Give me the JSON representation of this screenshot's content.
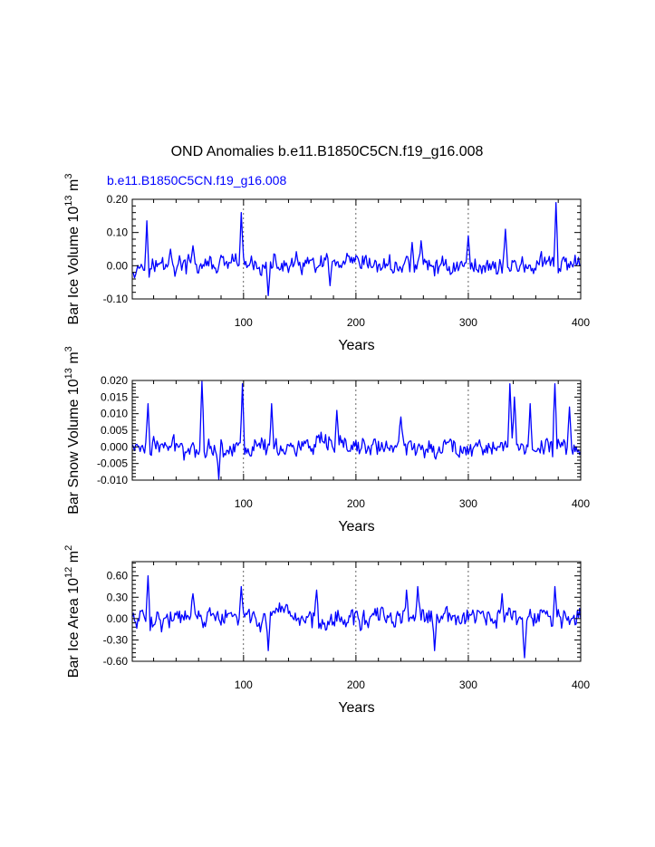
{
  "main_title": "OND Anomalies b.e11.B1850C5CN.f19_g16.008",
  "run_label": "b.e11.B1850C5CN.f19_g16.008",
  "chart_data": [
    {
      "type": "line",
      "ylabel": "Bar Ice Volume",
      "yunit_base": "10",
      "yunit_exp": "13",
      "yunit_unit": "m",
      "yunit_unit_exp": "3",
      "xlabel": "Years",
      "xlim": [
        1,
        400
      ],
      "ylim": [
        -0.1,
        0.2
      ],
      "xticks": [
        100,
        200,
        300,
        400
      ],
      "xticklabels": [
        "100",
        "200",
        "300",
        "400"
      ],
      "yticks": [
        -0.1,
        0.0,
        0.1,
        0.2
      ],
      "yticklabels": [
        "-0.10",
        "0.00",
        "0.10",
        "0.20"
      ],
      "grid_x": [
        100,
        200,
        300
      ],
      "color": "#0000ff",
      "peaks": [
        [
          14,
          0.135
        ],
        [
          98,
          0.16
        ],
        [
          378,
          0.19
        ],
        [
          333,
          0.11
        ],
        [
          122,
          -0.09
        ],
        [
          300,
          0.09
        ],
        [
          250,
          0.07
        ],
        [
          258,
          0.075
        ],
        [
          177,
          -0.06
        ],
        [
          35,
          0.05
        ],
        [
          55,
          0.06
        ]
      ]
    },
    {
      "type": "line",
      "ylabel": "Bar Snow Volume",
      "yunit_base": "10",
      "yunit_exp": "13",
      "yunit_unit": "m",
      "yunit_unit_exp": "3",
      "xlabel": "Years",
      "xlim": [
        1,
        400
      ],
      "ylim": [
        -0.01,
        0.02
      ],
      "xticks": [
        100,
        200,
        300,
        400
      ],
      "xticklabels": [
        "100",
        "200",
        "300",
        "400"
      ],
      "yticks": [
        -0.01,
        -0.005,
        0.0,
        0.005,
        0.01,
        0.015,
        0.02
      ],
      "yticklabels": [
        "-0.010",
        "-0.005",
        "0.000",
        "0.005",
        "0.010",
        "0.015",
        "0.020"
      ],
      "grid_x": [
        100,
        200,
        300
      ],
      "color": "#0000ff",
      "peaks": [
        [
          63,
          0.02
        ],
        [
          99,
          0.019
        ],
        [
          125,
          0.013
        ],
        [
          15,
          0.013
        ],
        [
          337,
          0.019
        ],
        [
          377,
          0.019
        ],
        [
          341,
          0.015
        ],
        [
          78,
          -0.01
        ],
        [
          183,
          0.011
        ],
        [
          390,
          0.012
        ],
        [
          240,
          0.009
        ],
        [
          355,
          0.013
        ]
      ]
    },
    {
      "type": "line",
      "ylabel": "Bar Ice Area",
      "yunit_base": "10",
      "yunit_exp": "12",
      "yunit_unit": "m",
      "yunit_unit_exp": "2",
      "xlabel": "Years",
      "xlim": [
        1,
        400
      ],
      "ylim": [
        -0.6,
        0.8
      ],
      "xticks": [
        100,
        200,
        300,
        400
      ],
      "xticklabels": [
        "100",
        "200",
        "300",
        "400"
      ],
      "yticks": [
        -0.6,
        -0.3,
        0.0,
        0.3,
        0.6
      ],
      "yticklabels": [
        "-0.60",
        "-0.30",
        "0.00",
        "0.30",
        "0.60"
      ],
      "grid_x": [
        100,
        200,
        300
      ],
      "color": "#0000ff",
      "peaks": [
        [
          15,
          0.6
        ],
        [
          98,
          0.45
        ],
        [
          377,
          0.45
        ],
        [
          350,
          -0.55
        ],
        [
          270,
          -0.45
        ],
        [
          122,
          -0.45
        ],
        [
          255,
          0.45
        ],
        [
          330,
          0.35
        ],
        [
          55,
          0.35
        ],
        [
          165,
          0.4
        ],
        [
          245,
          0.4
        ]
      ]
    }
  ]
}
